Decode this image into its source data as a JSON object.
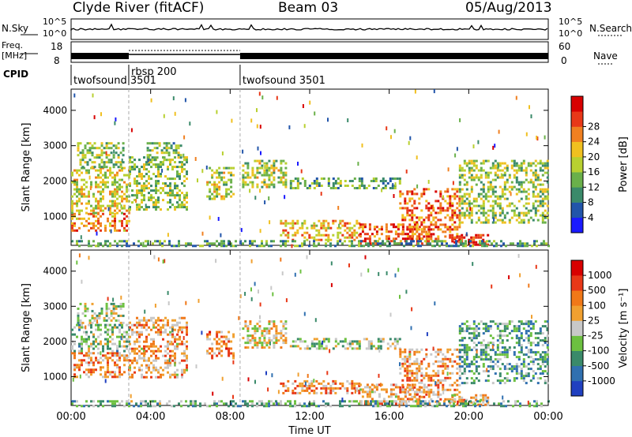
{
  "header": {
    "station": "Clyde River (fitACF)",
    "beam": "Beam 03",
    "date": "05/Aug/2013"
  },
  "status_panels": {
    "nsky": {
      "label": "N.Sky",
      "ticks": [
        "10^5",
        "10^0"
      ]
    },
    "nsearch": {
      "label": "N.Search",
      "ticks": [
        "10^5",
        "10^0"
      ]
    },
    "freq": {
      "label_line1": "Freq.",
      "label_line2": "[MHz]",
      "ticks": [
        "18",
        "8"
      ]
    },
    "nave": {
      "label": "Nave",
      "ticks": [
        "60",
        "0"
      ]
    },
    "cpid": {
      "label": "CPID",
      "segments": [
        {
          "name": "twofsound 3501",
          "start_hour": 0.0,
          "end_hour": 2.9
        },
        {
          "name": "rbsp 200",
          "start_hour": 2.9,
          "end_hour": 8.5
        },
        {
          "name": "twofsound 3501",
          "start_hour": 8.5,
          "end_hour": 24.0
        }
      ]
    }
  },
  "chart_data": [
    {
      "type": "heatmap",
      "panel": "power",
      "xlabel": "Time UT",
      "ylabel": "Slant Range [km]",
      "xlim": [
        0,
        24
      ],
      "ylim": [
        180,
        4600
      ],
      "x_ticks": [
        "00:00",
        "04:00",
        "08:00",
        "12:00",
        "16:00",
        "20:00",
        "00:00"
      ],
      "y_ticks": [
        1000,
        2000,
        3000,
        4000
      ],
      "colorbar": {
        "label": "Power [dB]",
        "ticks": [
          4,
          8,
          12,
          16,
          20,
          24,
          28
        ],
        "range": [
          0,
          30
        ],
        "colors": [
          "#1a1aff",
          "#2255aa",
          "#3a8a6a",
          "#6ab04a",
          "#b8d030",
          "#f0c020",
          "#f08020",
          "#e83818",
          "#d80000"
        ]
      },
      "echo_regions": [
        {
          "t0": 0.0,
          "t1": 2.9,
          "r0": 600,
          "r1": 1100,
          "level": 0.75
        },
        {
          "t0": 0.0,
          "t1": 2.9,
          "r0": 1100,
          "r1": 2400,
          "level": 0.55
        },
        {
          "t0": 0.3,
          "t1": 2.6,
          "r0": 2400,
          "r1": 3100,
          "level": 0.45
        },
        {
          "t0": 2.9,
          "t1": 5.8,
          "r0": 1200,
          "r1": 2700,
          "level": 0.45
        },
        {
          "t0": 3.8,
          "t1": 5.5,
          "r0": 2600,
          "r1": 3100,
          "level": 0.4
        },
        {
          "t0": 6.8,
          "t1": 8.2,
          "r0": 1500,
          "r1": 2400,
          "level": 0.5
        },
        {
          "t0": 8.6,
          "t1": 10.8,
          "r0": 1800,
          "r1": 2600,
          "level": 0.5
        },
        {
          "t0": 10.5,
          "t1": 14.5,
          "r0": 300,
          "r1": 900,
          "level": 0.65
        },
        {
          "t0": 11.0,
          "t1": 16.5,
          "r0": 1800,
          "r1": 2100,
          "level": 0.35
        },
        {
          "t0": 14.5,
          "t1": 18.0,
          "r0": 200,
          "r1": 800,
          "level": 0.85
        },
        {
          "t0": 16.5,
          "t1": 19.5,
          "r0": 300,
          "r1": 1800,
          "level": 0.8
        },
        {
          "t0": 19.0,
          "t1": 21.0,
          "r0": 200,
          "r1": 500,
          "level": 0.9
        },
        {
          "t0": 19.5,
          "t1": 24.0,
          "r0": 800,
          "r1": 2600,
          "level": 0.45
        },
        {
          "t0": 0.0,
          "t1": 24.0,
          "r0": 180,
          "r1": 330,
          "level": 0.3
        }
      ]
    },
    {
      "type": "heatmap",
      "panel": "velocity",
      "xlabel": "Time UT",
      "ylabel": "Slant Range [km]",
      "xlim": [
        0,
        24
      ],
      "ylim": [
        180,
        4600
      ],
      "x_ticks": [
        "00:00",
        "04:00",
        "08:00",
        "12:00",
        "16:00",
        "20:00",
        "00:00"
      ],
      "y_ticks": [
        1000,
        2000,
        3000,
        4000
      ],
      "colorbar": {
        "label": "Velocity [m s⁻¹]",
        "ticks": [
          "1000",
          "500",
          "100",
          "25",
          "-25",
          "-100",
          "-500",
          "-1000"
        ],
        "colors": [
          "#2040c0",
          "#3070b0",
          "#3a8a6a",
          "#6cc040",
          "#c8c8c8",
          "#f0a030",
          "#f07818",
          "#e83818",
          "#d80000"
        ]
      },
      "echo_regions": [
        {
          "t0": 0.0,
          "t1": 2.9,
          "r0": 1000,
          "r1": 1700,
          "level": 0.7
        },
        {
          "t0": 0.0,
          "t1": 2.9,
          "r0": 1700,
          "r1": 2500,
          "level": 0.4
        },
        {
          "t0": 0.3,
          "t1": 2.6,
          "r0": 2500,
          "r1": 3100,
          "level": 0.45
        },
        {
          "t0": 2.9,
          "t1": 5.8,
          "r0": 1000,
          "r1": 2700,
          "level": 0.65
        },
        {
          "t0": 6.8,
          "t1": 8.2,
          "r0": 1500,
          "r1": 2300,
          "level": 0.72
        },
        {
          "t0": 8.6,
          "t1": 10.8,
          "r0": 1800,
          "r1": 2600,
          "level": 0.55
        },
        {
          "t0": 10.5,
          "t1": 14.5,
          "r0": 500,
          "r1": 900,
          "level": 0.7
        },
        {
          "t0": 11.0,
          "t1": 16.5,
          "r0": 1800,
          "r1": 2100,
          "level": 0.42
        },
        {
          "t0": 14.5,
          "t1": 18.0,
          "r0": 200,
          "r1": 800,
          "level": 0.65
        },
        {
          "t0": 16.5,
          "t1": 19.5,
          "r0": 300,
          "r1": 1800,
          "level": 0.66
        },
        {
          "t0": 19.0,
          "t1": 21.0,
          "r0": 200,
          "r1": 500,
          "level": 0.6
        },
        {
          "t0": 19.5,
          "t1": 24.0,
          "r0": 800,
          "r1": 2600,
          "level": 0.3
        },
        {
          "t0": 0.0,
          "t1": 24.0,
          "r0": 180,
          "r1": 330,
          "level": 0.35
        }
      ]
    }
  ]
}
